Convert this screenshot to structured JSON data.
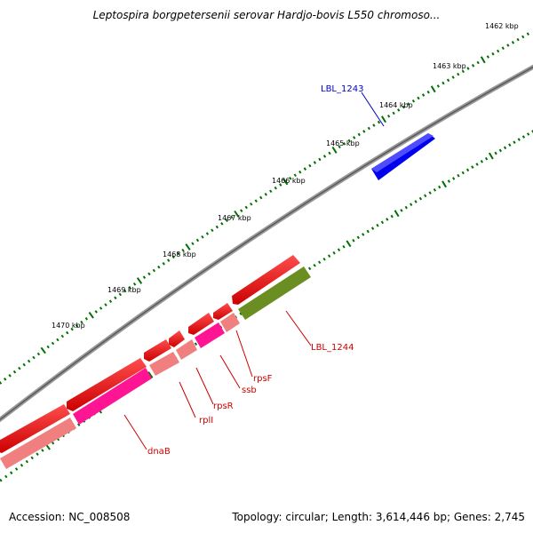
{
  "title": "Leptospira borgpetersenii serovar Hardjo-bovis L550 chromoso...",
  "footer": {
    "accession": "Accession: NC_008508",
    "summary": "Topology: circular; Length: 3,614,446 bp; Genes: 2,745"
  },
  "ticks": [
    {
      "label": "1462 kbp"
    },
    {
      "label": "1463 kbp"
    },
    {
      "label": "1464 kbp"
    },
    {
      "label": "1465 kbp"
    },
    {
      "label": "1466 kbp"
    },
    {
      "label": "1467 kbp"
    },
    {
      "label": "1468 kbp"
    },
    {
      "label": "1469 kbp"
    },
    {
      "label": "1470 kbp"
    }
  ],
  "genes": [
    {
      "label": "LBL_1243",
      "color": "#0000ff"
    },
    {
      "label": "LBL_1244",
      "color": "#cc0000"
    },
    {
      "label": "rpsF",
      "color": "#cc0000"
    },
    {
      "label": "ssb",
      "color": "#cc0000"
    },
    {
      "label": "rpsR",
      "color": "#cc0000"
    },
    {
      "label": "rplI",
      "color": "#cc0000"
    },
    {
      "label": "dnaB",
      "color": "#cc0000"
    }
  ],
  "colors": {
    "backbone": "#808080",
    "tick": "#007000",
    "forward_cds": "#ff0000",
    "reverse_cds": "#0000ff",
    "rna_gene": "#6b8e23",
    "gene_pink": "#ff1493",
    "gene_light": "#f08080"
  }
}
